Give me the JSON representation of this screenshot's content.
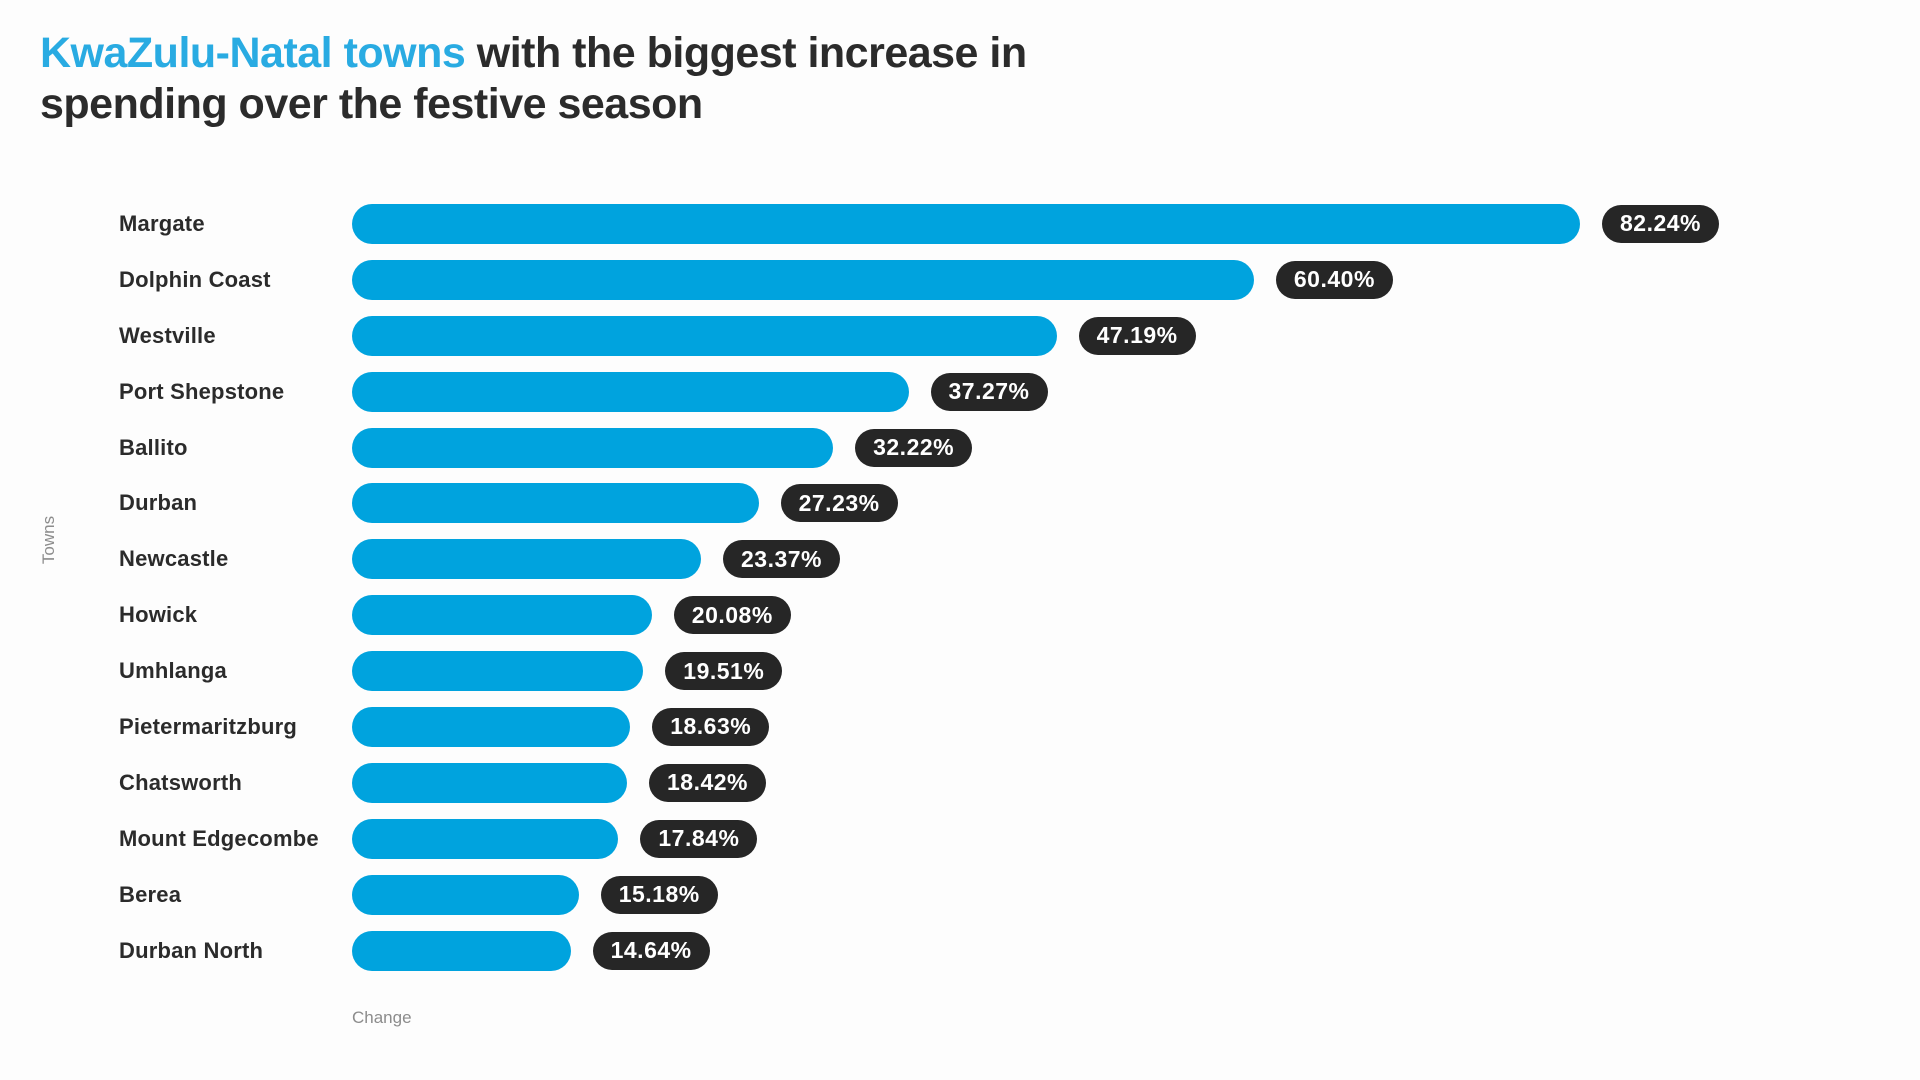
{
  "title": {
    "highlight": "KwaZulu-Natal towns",
    "rest_line1": " with the biggest increase in",
    "line2": "spending over the festive season"
  },
  "colors": {
    "accent": "#00a3de",
    "title_highlight": "#29abe2",
    "badge_bg": "#262626",
    "text_dark": "#2b2b2b",
    "axis_label": "#8c8c8c",
    "background": "#fdfdfd"
  },
  "chart_data": {
    "type": "bar",
    "orientation": "horizontal",
    "title": "KwaZulu-Natal towns with the biggest increase in spending over the festive season",
    "xlabel": "Change",
    "ylabel": "Towns",
    "categories": [
      "Margate",
      "Dolphin Coast",
      "Westville",
      "Port Shepstone",
      "Ballito",
      "Durban",
      "Newcastle",
      "Howick",
      "Umhlanga",
      "Pietermaritzburg",
      "Chatsworth",
      "Mount Edgecombe",
      "Berea",
      "Durban North"
    ],
    "values": [
      82.24,
      60.4,
      47.19,
      37.27,
      32.22,
      27.23,
      23.37,
      20.08,
      19.51,
      18.63,
      18.42,
      17.84,
      15.18,
      14.64
    ],
    "value_labels": [
      "82.24%",
      "60.40%",
      "47.19%",
      "37.27%",
      "32.22%",
      "27.23%",
      "23.37%",
      "20.08%",
      "19.51%",
      "18.63%",
      "18.42%",
      "17.84%",
      "15.18%",
      "14.64%"
    ],
    "xlim": [
      0,
      82.24
    ],
    "grid": false,
    "legend": false,
    "bar_labels_position": "outside-end"
  }
}
